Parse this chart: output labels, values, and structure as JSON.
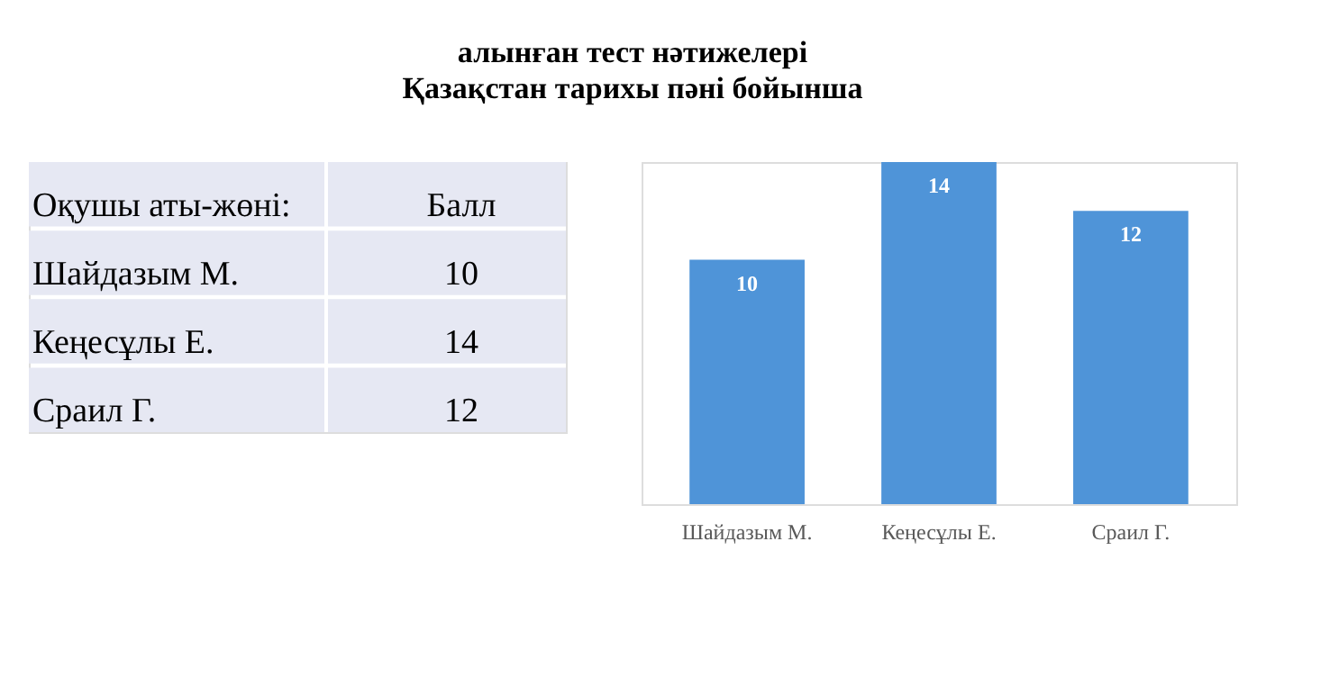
{
  "chart_data": [
    {
      "type": "other",
      "annotations": [
        "Оқушы аты-жөні:",
        "Балл",
        "Шайдазым М.",
        "10",
        "Кеңесұлы Е.",
        "14",
        "Сраил Г.",
        "12"
      ]
    },
    {
      "type": "bar",
      "title": "алынған тест нәтижелері",
      "subtitle": "Қазақстан тарихы пәні бойынша",
      "categories": [
        "Шайдазым М.",
        "Кеңесұлы Е.",
        "Сраил Г."
      ],
      "values": [
        10,
        14,
        12
      ],
      "color": "#4f94d8",
      "data_labels": true,
      "grid": false
    }
  ]
}
